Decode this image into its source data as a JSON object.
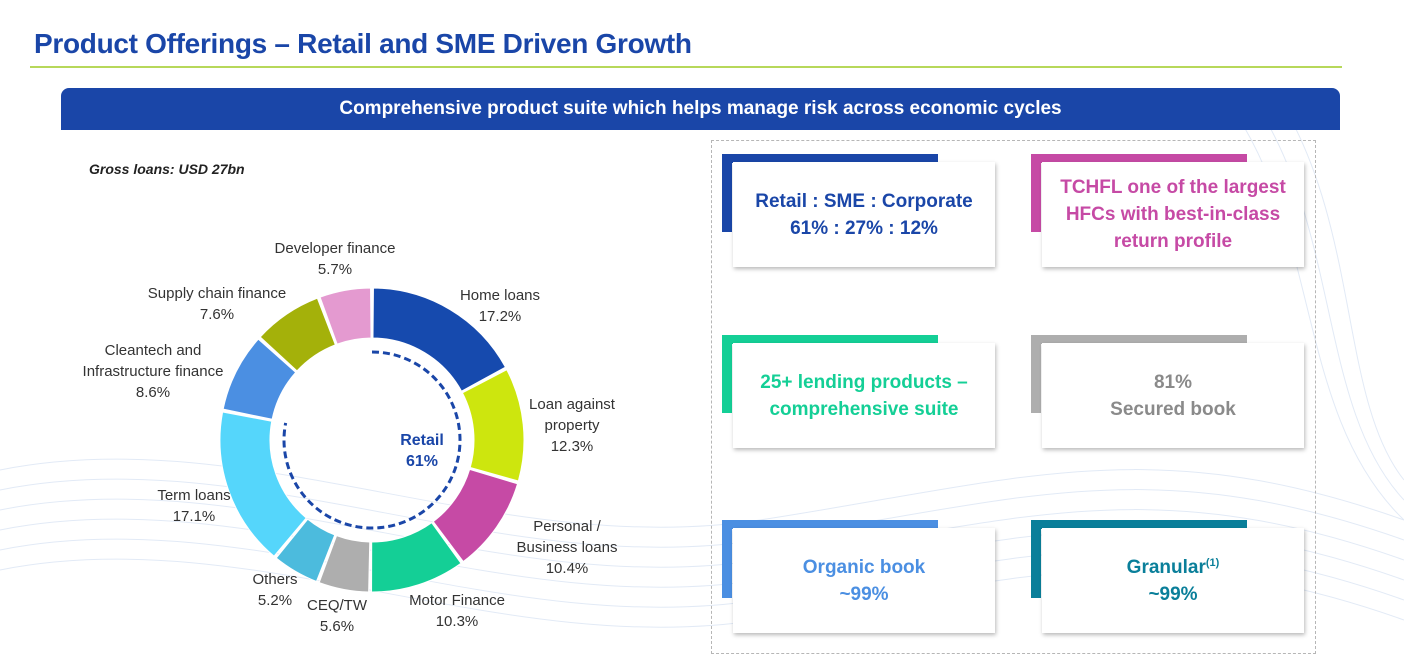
{
  "title": "Product Offerings – Retail and SME Driven Growth",
  "banner": "Comprehensive product suite which helps manage risk across economic cycles",
  "colors": {
    "title_blue": "#1a46a8",
    "rule_green": "#b7d85a",
    "retail_ring": "#1a46a8"
  },
  "chart_data": {
    "type": "pie",
    "variant": "donut",
    "title": "Gross loans: USD 27bn",
    "center_label": [
      "Retail",
      "61%"
    ],
    "slices": [
      {
        "label": [
          "Home loans"
        ],
        "value": 17.2,
        "pct_label": "17.2%",
        "color": "#164aae"
      },
      {
        "label": [
          "Loan against",
          "property"
        ],
        "value": 12.3,
        "pct_label": "12.3%",
        "color": "#cde60e"
      },
      {
        "label": [
          "Personal /",
          "Business loans"
        ],
        "value": 10.4,
        "pct_label": "10.4%",
        "color": "#c64aa5"
      },
      {
        "label": [
          "Motor Finance"
        ],
        "value": 10.3,
        "pct_label": "10.3%",
        "color": "#14cf96"
      },
      {
        "label": [
          "CEQ/TW"
        ],
        "value": 5.6,
        "pct_label": "5.6%",
        "color": "#aeaeae"
      },
      {
        "label": [
          "Others"
        ],
        "value": 5.2,
        "pct_label": "5.2%",
        "color": "#4cbbdd"
      },
      {
        "label": [
          "Term loans"
        ],
        "value": 17.1,
        "pct_label": "17.1%",
        "color": "#55d6fb"
      },
      {
        "label": [
          "Cleantech and",
          "Infrastructure finance"
        ],
        "value": 8.6,
        "pct_label": "8.6%",
        "color": "#4b8fe2"
      },
      {
        "label": [
          "Supply chain finance"
        ],
        "value": 7.6,
        "pct_label": "7.6%",
        "color": "#a4b10a"
      },
      {
        "label": [
          "Developer finance"
        ],
        "value": 5.7,
        "pct_label": "5.7%",
        "color": "#e49ad0"
      }
    ]
  },
  "cards": [
    {
      "id": "retail-sme-corporate",
      "lines": [
        "Retail : SME : Corporate",
        "61% : 27% : 12%"
      ],
      "accent": "#1a46a8",
      "text_color": "#1a46a8"
    },
    {
      "id": "tchfl",
      "lines": [
        "TCHFL one of the largest",
        "HFCs with best-in-class",
        "return profile"
      ],
      "accent": "#c64aa5",
      "text_color": "#c64aa5"
    },
    {
      "id": "lending-products",
      "lines": [
        "25+ lending products –",
        "comprehensive suite"
      ],
      "accent": "#14cf96",
      "text_color": "#14cf96"
    },
    {
      "id": "secured-book",
      "lines": [
        "81%",
        "Secured book"
      ],
      "accent": "#aeaeae",
      "text_color": "#8a8a8a"
    },
    {
      "id": "organic-book",
      "lines": [
        "Organic book",
        "~99%"
      ],
      "accent": "#4b8fe2",
      "text_color": "#4b8fe2"
    },
    {
      "id": "granular",
      "lines": [
        "Granular",
        "~99%"
      ],
      "footnote": "(1)",
      "accent": "#0a7f9a",
      "text_color": "#0a7f9a"
    }
  ]
}
